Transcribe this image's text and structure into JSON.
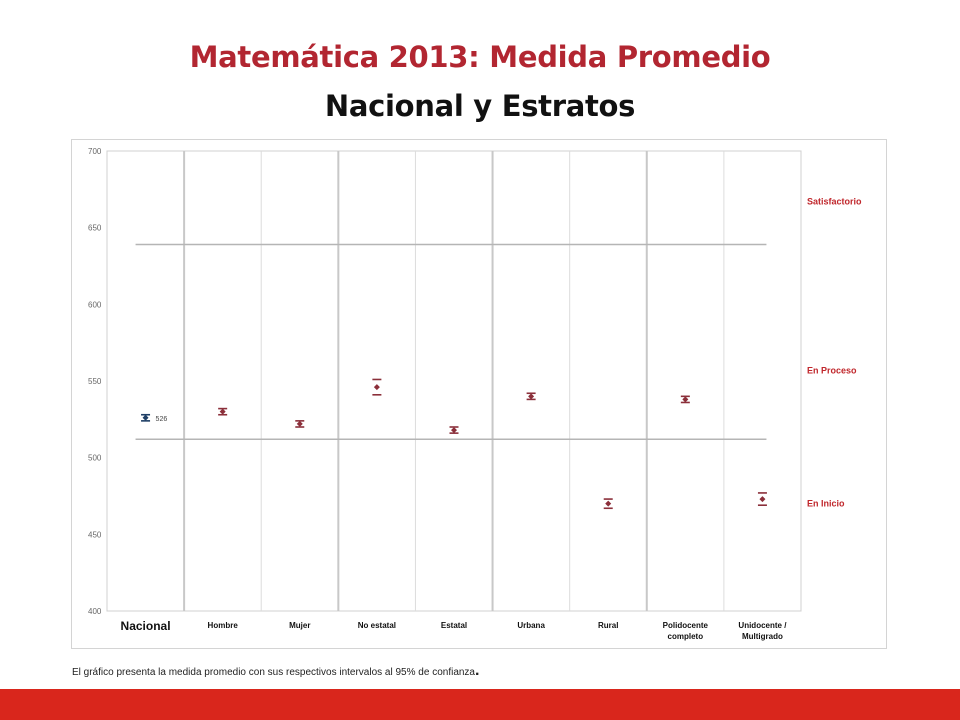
{
  "slide": {
    "title": "Matemática 2013: Medida Promedio",
    "subtitle": "Nacional y Estratos",
    "footnote": "El gráfico presenta la medida promedio con sus respectivos intervalos  al 95% de confianza",
    "footnote_end": ".",
    "accent_color": "#b22631",
    "bar_color": "#d9261c"
  },
  "chart_data": {
    "type": "scatter",
    "title": "",
    "xlabel": "",
    "ylabel": "",
    "ylim": [
      400,
      700
    ],
    "y_ticks": [
      "400",
      "450",
      "500",
      "550",
      "600",
      "650",
      "700"
    ],
    "categories": [
      "Nacional",
      "Hombre",
      "Mujer",
      "No estatal",
      "Estatal",
      "Urbana",
      "Rural",
      "Polidocente completo",
      "Unidocente / Multigrado"
    ],
    "category_lines": [
      [
        "Nacional"
      ],
      [
        "Hombre"
      ],
      [
        "Mujer"
      ],
      [
        "No estatal"
      ],
      [
        "Estatal"
      ],
      [
        "Urbana"
      ],
      [
        "Rural"
      ],
      [
        "Polidocente",
        "completo"
      ],
      [
        "Unidocente /",
        "Multigrado"
      ]
    ],
    "means": [
      526,
      530,
      522,
      546,
      518,
      540,
      470,
      538,
      473
    ],
    "ci_low": [
      524,
      528,
      520,
      541,
      516,
      538,
      467,
      536,
      469
    ],
    "ci_high": [
      528,
      532,
      524,
      551,
      520,
      542,
      473,
      540,
      477
    ],
    "point_labels": [
      "526",
      "",
      "",
      "",
      "",
      "",
      "",
      "",
      ""
    ],
    "point_colors": [
      "#1f3f66",
      "#8b2f3a",
      "#8b2f3a",
      "#8b2f3a",
      "#8b2f3a",
      "#8b2f3a",
      "#8b2f3a",
      "#8b2f3a",
      "#8b2f3a"
    ],
    "thresholds": [
      512,
      639
    ],
    "level_labels": [
      {
        "text": "Satisfactorio",
        "y": 665
      },
      {
        "text": "En Proceso",
        "y": 555
      },
      {
        "text": "En Inicio",
        "y": 468
      }
    ],
    "level_color": "#c0262b",
    "grid": true
  }
}
